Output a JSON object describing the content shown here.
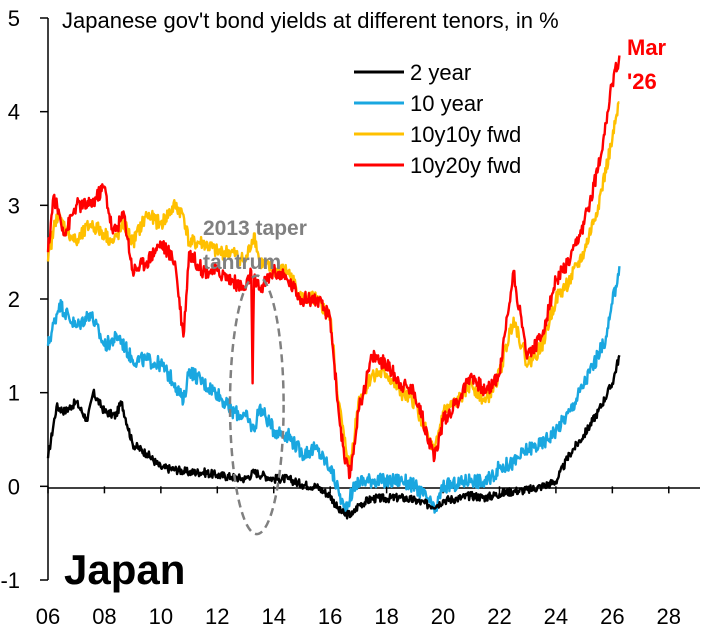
{
  "chart_data": {
    "type": "line",
    "title": "Japanese gov't bond yields at different tenors, in %",
    "country_label": "Japan",
    "end_label": [
      "Mar",
      "'26"
    ],
    "annotation": [
      "2013 taper",
      "tantrum"
    ],
    "xlabel": "",
    "ylabel": "",
    "xlim": [
      2006,
      2029
    ],
    "ylim": [
      -1,
      5
    ],
    "x_ticks": [
      2006,
      2008,
      2010,
      2012,
      2014,
      2016,
      2018,
      2020,
      2022,
      2024,
      2026,
      2028
    ],
    "x_tick_labels": [
      "06",
      "08",
      "10",
      "12",
      "14",
      "16",
      "18",
      "20",
      "22",
      "24",
      "26",
      "28"
    ],
    "y_ticks": [
      -1,
      0,
      1,
      2,
      3,
      4,
      5
    ],
    "y_tick_labels": [
      "-1",
      "0",
      "1",
      "2",
      "3",
      "4",
      "5"
    ],
    "legend_position": "top-right",
    "series": [
      {
        "name": "2 year",
        "color": "#000000",
        "x": [
          2006.0,
          2006.3,
          2006.6,
          2007.0,
          2007.4,
          2007.6,
          2008.0,
          2008.4,
          2008.6,
          2009.0,
          2009.5,
          2010.0,
          2010.5,
          2011.0,
          2011.5,
          2012.0,
          2012.5,
          2013.0,
          2013.3,
          2013.6,
          2014.0,
          2014.5,
          2015.0,
          2015.5,
          2016.0,
          2016.3,
          2016.5,
          2016.8,
          2017.0,
          2017.5,
          2018.0,
          2018.5,
          2019.0,
          2019.5,
          2019.8,
          2020.0,
          2020.5,
          2021.0,
          2021.5,
          2022.0,
          2022.5,
          2023.0,
          2023.5,
          2024.0,
          2024.5,
          2025.0,
          2025.5,
          2026.0,
          2026.25
        ],
        "values": [
          0.3,
          0.85,
          0.8,
          0.9,
          0.7,
          1.0,
          0.8,
          0.75,
          0.9,
          0.45,
          0.35,
          0.2,
          0.18,
          0.15,
          0.15,
          0.12,
          0.1,
          0.08,
          0.15,
          0.12,
          0.08,
          0.08,
          0.02,
          0.0,
          -0.1,
          -0.25,
          -0.3,
          -0.3,
          -0.2,
          -0.13,
          -0.13,
          -0.12,
          -0.15,
          -0.2,
          -0.2,
          -0.15,
          -0.13,
          -0.1,
          -0.12,
          -0.08,
          -0.05,
          -0.04,
          0.0,
          0.05,
          0.35,
          0.55,
          0.8,
          1.1,
          1.4
        ]
      },
      {
        "name": "10 year",
        "color": "#1aa7e0",
        "x": [
          2006.0,
          2006.4,
          2007.0,
          2007.5,
          2008.0,
          2008.5,
          2009.0,
          2009.5,
          2010.0,
          2010.5,
          2010.8,
          2011.0,
          2011.5,
          2012.0,
          2012.5,
          2013.0,
          2013.3,
          2013.5,
          2013.8,
          2014.0,
          2014.5,
          2015.0,
          2015.5,
          2016.0,
          2016.3,
          2016.5,
          2016.8,
          2017.0,
          2017.5,
          2018.0,
          2018.5,
          2019.0,
          2019.5,
          2019.7,
          2020.0,
          2020.5,
          2021.0,
          2021.5,
          2022.0,
          2022.5,
          2023.0,
          2023.5,
          2024.0,
          2024.5,
          2025.0,
          2025.5,
          2025.8,
          2026.0,
          2026.25
        ],
        "values": [
          1.5,
          1.95,
          1.7,
          1.85,
          1.5,
          1.6,
          1.35,
          1.35,
          1.3,
          1.1,
          0.9,
          1.25,
          1.1,
          1.0,
          0.8,
          0.75,
          0.6,
          0.85,
          0.7,
          0.6,
          0.55,
          0.35,
          0.4,
          0.2,
          -0.05,
          -0.25,
          -0.05,
          0.05,
          0.07,
          0.05,
          0.07,
          0.0,
          -0.15,
          -0.28,
          0.0,
          0.02,
          0.08,
          0.03,
          0.2,
          0.25,
          0.4,
          0.45,
          0.6,
          0.8,
          1.1,
          1.4,
          1.6,
          1.95,
          2.35
        ]
      },
      {
        "name": "10y10y fwd",
        "color": "#ffc000",
        "x": [
          2006.0,
          2006.3,
          2007.0,
          2007.5,
          2008.0,
          2008.3,
          2008.7,
          2009.0,
          2009.5,
          2010.0,
          2010.5,
          2010.8,
          2011.0,
          2011.5,
          2012.0,
          2012.5,
          2013.0,
          2013.3,
          2013.5,
          2014.0,
          2014.5,
          2015.0,
          2015.5,
          2016.0,
          2016.3,
          2016.5,
          2016.7,
          2017.0,
          2017.5,
          2018.0,
          2018.5,
          2019.0,
          2019.5,
          2019.7,
          2020.0,
          2020.5,
          2021.0,
          2021.5,
          2022.0,
          2022.5,
          2022.8,
          2023.0,
          2023.5,
          2024.0,
          2024.5,
          2025.0,
          2025.5,
          2026.0,
          2026.25
        ],
        "values": [
          2.4,
          2.9,
          2.6,
          2.8,
          2.7,
          2.6,
          2.8,
          2.6,
          2.9,
          2.8,
          3.0,
          2.9,
          2.6,
          2.6,
          2.5,
          2.5,
          2.4,
          2.7,
          2.4,
          2.3,
          2.3,
          2.0,
          2.0,
          1.8,
          0.9,
          0.5,
          0.2,
          0.9,
          1.2,
          1.2,
          1.0,
          0.9,
          0.5,
          0.35,
          0.8,
          0.9,
          1.1,
          0.9,
          1.2,
          1.8,
          1.5,
          1.3,
          1.5,
          2.0,
          2.2,
          2.5,
          3.0,
          3.7,
          4.1
        ]
      },
      {
        "name": "10y20y fwd",
        "color": "#ff0000",
        "x": [
          2006.0,
          2006.2,
          2006.6,
          2007.0,
          2007.5,
          2008.0,
          2008.3,
          2008.7,
          2009.0,
          2009.5,
          2010.0,
          2010.5,
          2010.8,
          2011.0,
          2011.5,
          2012.0,
          2012.5,
          2013.0,
          2013.2,
          2013.25,
          2013.3,
          2013.5,
          2014.0,
          2014.5,
          2015.0,
          2015.5,
          2016.0,
          2016.3,
          2016.5,
          2016.7,
          2017.0,
          2017.5,
          2018.0,
          2018.5,
          2019.0,
          2019.5,
          2019.7,
          2020.0,
          2020.5,
          2021.0,
          2021.5,
          2022.0,
          2022.5,
          2022.8,
          2023.0,
          2023.5,
          2024.0,
          2024.5,
          2025.0,
          2025.5,
          2026.0,
          2026.25
        ],
        "values": [
          2.5,
          3.1,
          2.7,
          3.0,
          3.0,
          3.2,
          2.7,
          2.9,
          2.3,
          2.4,
          2.6,
          2.4,
          1.6,
          2.5,
          2.3,
          2.3,
          2.2,
          2.1,
          2.3,
          1.1,
          2.2,
          2.1,
          2.3,
          2.2,
          2.0,
          2.0,
          1.8,
          0.8,
          0.3,
          0.1,
          0.8,
          1.4,
          1.3,
          1.1,
          1.0,
          0.5,
          0.3,
          0.7,
          0.9,
          1.2,
          1.0,
          1.2,
          2.3,
          1.7,
          1.4,
          1.6,
          2.2,
          2.4,
          2.8,
          3.4,
          4.3,
          4.6
        ]
      }
    ],
    "annotation_ellipse": {
      "x_center": 2013.4,
      "y_center": 0.87,
      "x_radius": 0.95,
      "y_radius": 1.38
    }
  }
}
